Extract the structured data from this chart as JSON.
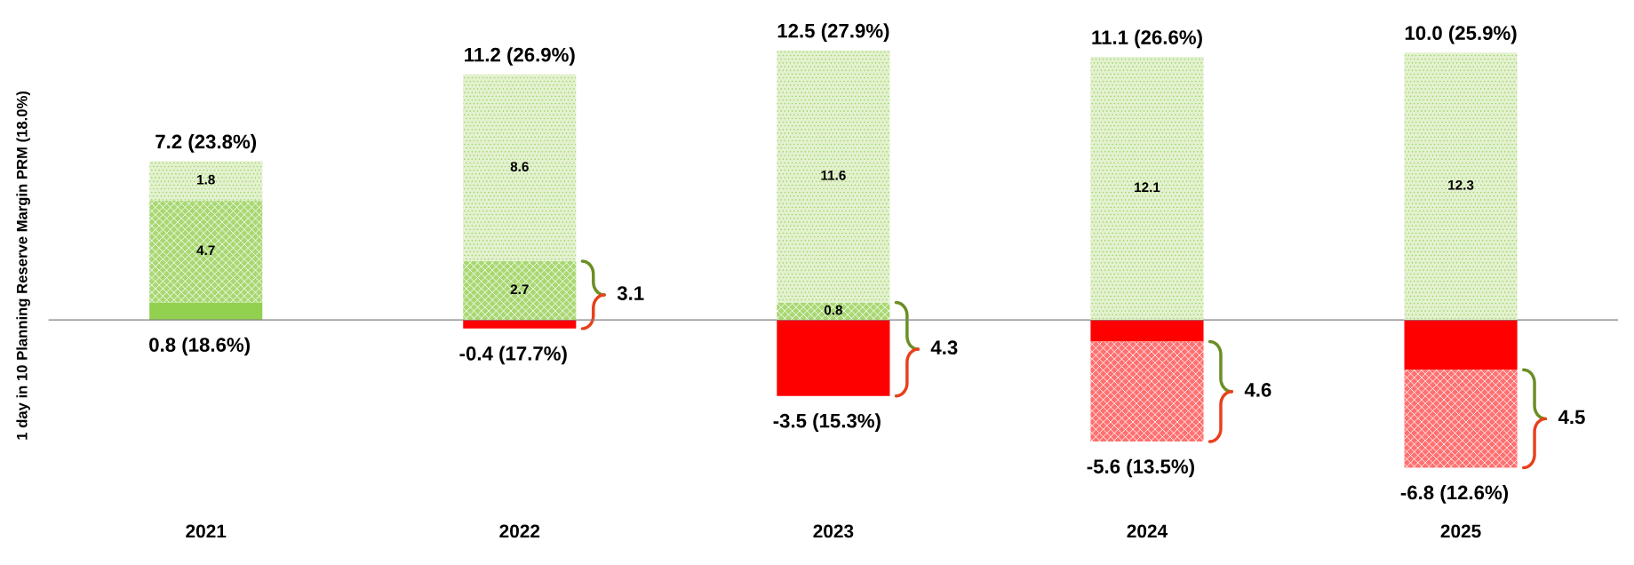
{
  "chart_data": {
    "type": "bar",
    "stacked": true,
    "ylabel": "1 day in 10 Planning Reserve Margin PRM (18.0%)",
    "categories": [
      "2021",
      "2022",
      "2023",
      "2024",
      "2025"
    ],
    "tick_labels": "x",
    "grid": false,
    "series": [
      {
        "colors": [
          "#92d050",
          "#ff0000",
          "#ff0000",
          "#ff0000",
          "#ff0000"
        ],
        "values": [
          0.8,
          -0.4,
          -3.5,
          -1.0,
          -2.3
        ],
        "value_labels": [
          null,
          null,
          null,
          null,
          null
        ]
      },
      {
        "colors": [
          "#a9d873",
          "#a9d873",
          "#a9d873",
          "#ff7070",
          "#ff7070"
        ],
        "values": [
          4.7,
          2.7,
          0.8,
          -4.6,
          -4.5
        ],
        "value_labels": [
          "4.7",
          "2.7",
          "0.8",
          null,
          null
        ]
      },
      {
        "color": "#e3f1d0",
        "values": [
          1.8,
          8.6,
          11.6,
          12.1,
          12.3
        ],
        "value_labels": [
          "1.8",
          "8.6",
          "11.6",
          "12.1",
          "12.3"
        ]
      }
    ],
    "annotations": [
      "7.2 (23.8%)",
      "0.8 (18.6%)",
      "11.2 (26.9%)",
      "-0.4 (17.7%)",
      "12.5 (27.9%)",
      "-3.5 (15.3%)",
      "11.1 (26.6%)",
      "-5.6 (13.5%)",
      "10.0 (25.9%)",
      "-6.8 (12.6%)",
      "3.1",
      "4.3",
      "4.6",
      "4.5"
    ]
  }
}
